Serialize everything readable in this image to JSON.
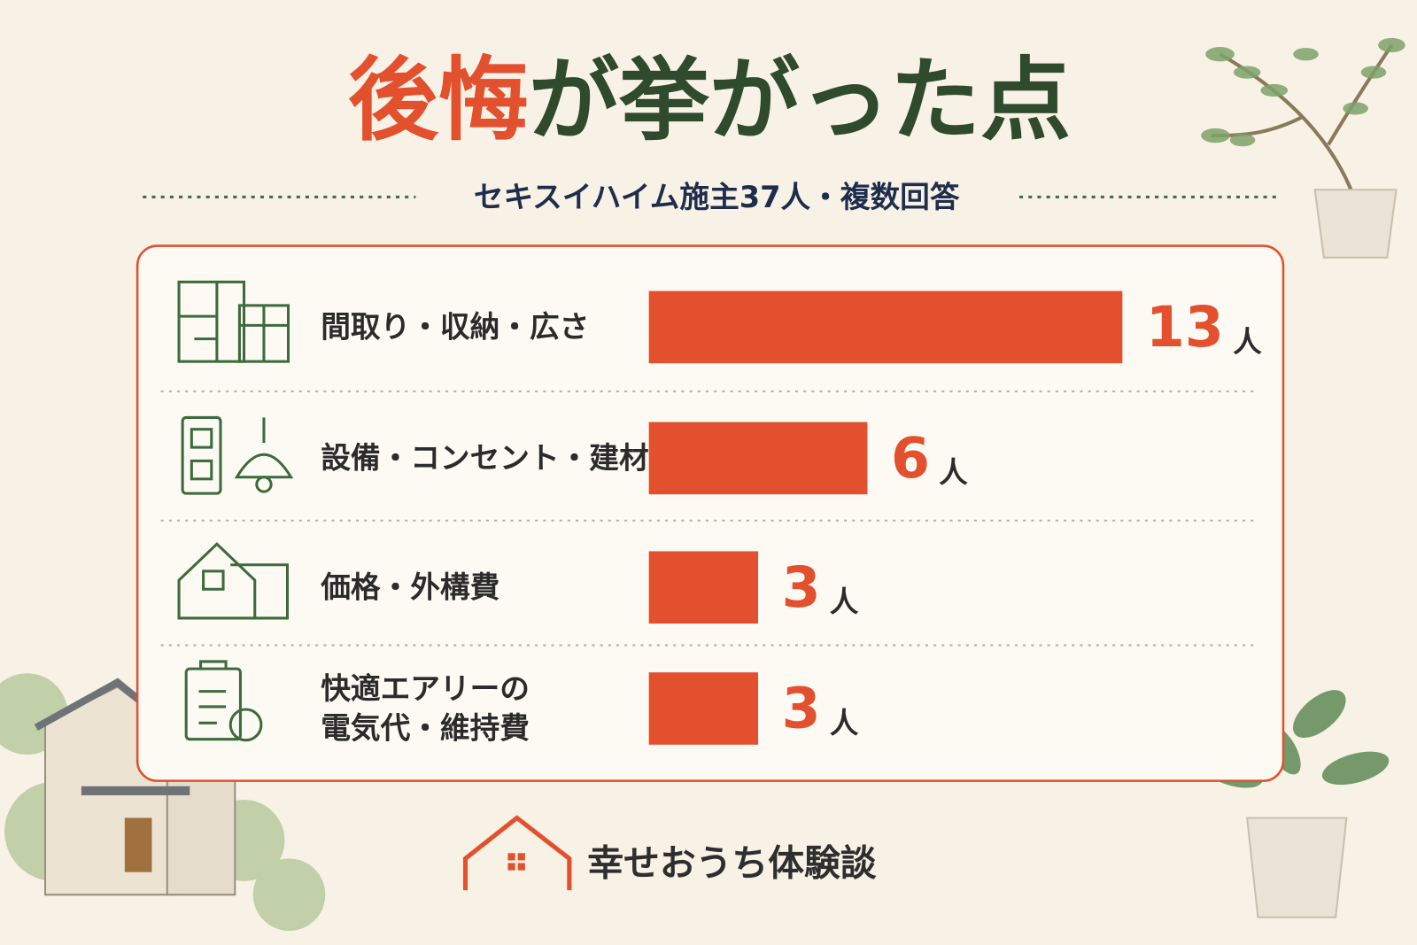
{
  "chart_data": {
    "type": "hbar",
    "title": {
      "highlight": "後悔",
      "rest": "が挙がった点"
    },
    "subtitle": "セキスイハイム施主37人・複数回答",
    "categories": [
      "間取り・収納・広さ",
      "設備・コンセント・建材",
      "価格・外構費",
      "快適エアリーの\n電気代・維持費"
    ],
    "values": [
      13,
      6,
      3,
      3
    ],
    "unit": "人",
    "color": "#e2502e",
    "brand": "幸せおうち体験談"
  }
}
